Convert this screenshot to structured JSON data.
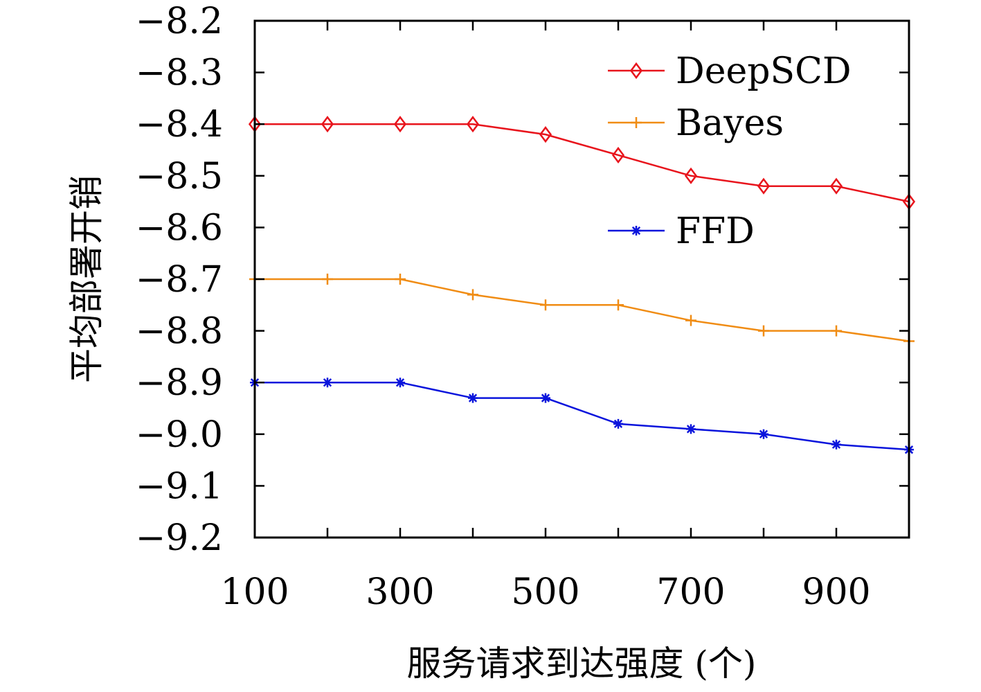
{
  "chart_data": {
    "type": "line",
    "title": "",
    "xlabel": "服务请求到达强度 (个)",
    "ylabel": "平均部署开销",
    "x": [
      100,
      200,
      300,
      400,
      500,
      600,
      700,
      800,
      900,
      1000
    ],
    "xlim": [
      100,
      1000
    ],
    "ylim": [
      -9.2,
      -8.2
    ],
    "xticks": [
      100,
      300,
      500,
      700,
      900
    ],
    "xtick_labels": [
      "100",
      "300",
      "500",
      "700",
      "900"
    ],
    "yticks": [
      -8.2,
      -8.3,
      -8.4,
      -8.5,
      -8.6,
      -8.7,
      -8.8,
      -8.9,
      -9.0,
      -9.1,
      -9.2
    ],
    "ytick_labels": [
      "−8.2",
      "−8.3",
      "−8.4",
      "−8.5",
      "−8.6",
      "−8.7",
      "−8.8",
      "−8.9",
      "−9.0",
      "−9.1",
      "−9.2"
    ],
    "grid": false,
    "legend_position": "top-right",
    "series": [
      {
        "name": "DeepSCD",
        "color": "#e8141c",
        "marker": "diamond",
        "values": [
          -8.4,
          -8.4,
          -8.4,
          -8.4,
          -8.42,
          -8.46,
          -8.5,
          -8.52,
          -8.52,
          -8.55
        ]
      },
      {
        "name": "Bayes",
        "color": "#f08c14",
        "marker": "plus",
        "values": [
          -8.7,
          -8.7,
          -8.7,
          -8.73,
          -8.75,
          -8.75,
          -8.78,
          -8.8,
          -8.8,
          -8.82
        ]
      },
      {
        "name": "FFD",
        "color": "#0a14dc",
        "marker": "star",
        "values": [
          -8.9,
          -8.9,
          -8.9,
          -8.93,
          -8.93,
          -8.98,
          -8.99,
          -9.0,
          -9.02,
          -9.03
        ]
      }
    ]
  }
}
